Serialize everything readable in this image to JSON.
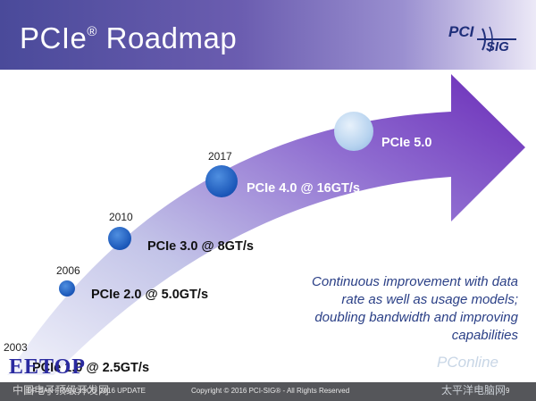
{
  "slide": {
    "title": "PCIe",
    "title_mark": "®",
    "title_suffix": " Roadmap",
    "logo_top": "PCI",
    "logo_bottom": "SIG"
  },
  "milestones": [
    {
      "year": "2003",
      "label": "PCIe 1.0 @ 2.5GT/s"
    },
    {
      "year": "2006",
      "label": "PCIe 2.0 @ 5.0GT/s"
    },
    {
      "year": "2010",
      "label": "PCIe 3.0 @ 8GT/s"
    },
    {
      "year": "2017",
      "label": "PCIe 4.0 @ 16GT/s"
    },
    {
      "year": "",
      "label": "PCIe 5.0"
    }
  ],
  "note": "Continuous improvement with data rate as well as usage models; doubling bandwidth and improving capabilities",
  "footer": {
    "left": "IDF SAN FRANCISCO 2016 UPDATE",
    "center": "Copyright © 2016 PCI-SIG® - All Rights Reserved",
    "page": "9"
  },
  "watermarks": {
    "left_logo": "EETOP",
    "left_caption": "中国电子顶级开发网",
    "right_logo": "PConline",
    "right_caption": "太平洋电脑网"
  },
  "colors": {
    "header_start": "#4a4a9a",
    "arrow_start": "#dfe3f6",
    "arrow_end": "#7a3fc0",
    "dot_blue": "#1a56b8",
    "note_text": "#2a3f86",
    "footer_bg": "#55565a"
  }
}
